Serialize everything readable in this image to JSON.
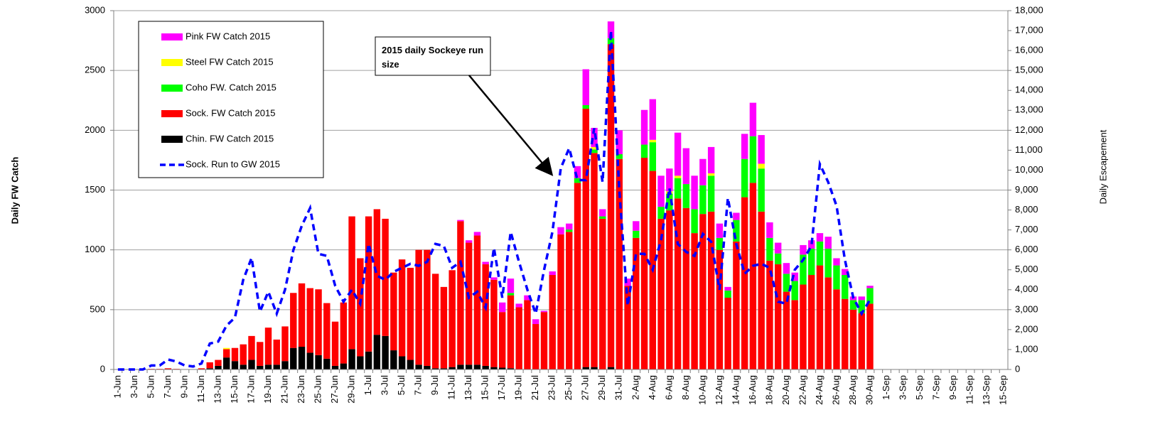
{
  "chart_data": {
    "type": "bar",
    "stacked": true,
    "y_label": "Daily FW Catch",
    "y2_label": "Daily Escapement",
    "annotation": "2015 daily Sockeye run size",
    "categories": [
      "1-Jun",
      null,
      "3-Jun",
      null,
      "5-Jun",
      null,
      "7-Jun",
      null,
      "9-Jun",
      null,
      "11-Jun",
      null,
      "13-Jun",
      null,
      "15-Jun",
      null,
      "17-Jun",
      null,
      "19-Jun",
      null,
      "21-Jun",
      null,
      "23-Jun",
      null,
      "25-Jun",
      null,
      "27-Jun",
      null,
      "29-Jun",
      null,
      "1-Jul",
      null,
      "3-Jul",
      null,
      "5-Jul",
      null,
      "7-Jul",
      null,
      "9-Jul",
      null,
      "11-Jul",
      null,
      "13-Jul",
      null,
      "15-Jul",
      null,
      "17-Jul",
      null,
      "19-Jul",
      null,
      "21-Jul",
      null,
      "23-Jul",
      null,
      "25-Jul",
      null,
      "27-Jul",
      null,
      "29-Jul",
      null,
      "31-Jul",
      null,
      "2-Aug",
      null,
      "4-Aug",
      null,
      "6-Aug",
      null,
      "8-Aug",
      null,
      "10-Aug",
      null,
      "12-Aug",
      null,
      "14-Aug",
      null,
      "16-Aug",
      null,
      "18-Aug",
      null,
      "20-Aug",
      null,
      "22-Aug",
      null,
      "24-Aug",
      null,
      "26-Aug",
      null,
      "28-Aug",
      null,
      "30-Aug",
      null,
      "1-Sep",
      null,
      "3-Sep",
      null,
      "5-Sep",
      null,
      "7-Sep",
      null,
      "9-Sep",
      null,
      "11-Sep",
      null,
      "13-Sep",
      null,
      "15-Sep"
    ],
    "series": [
      {
        "name": "Chin. FW Catch 2015",
        "color": "#000000",
        "values": [
          0,
          0,
          0,
          0,
          0,
          0,
          0,
          0,
          0,
          0,
          0,
          10,
          30,
          100,
          70,
          40,
          80,
          30,
          40,
          40,
          70,
          180,
          190,
          140,
          120,
          90,
          30,
          50,
          170,
          110,
          150,
          290,
          280,
          160,
          110,
          80,
          40,
          30,
          10,
          10,
          20,
          40,
          40,
          40,
          30,
          20,
          15,
          10,
          0,
          0,
          0,
          0,
          0,
          0,
          0,
          0,
          20,
          20,
          0,
          20,
          0,
          0,
          0,
          0,
          0,
          0,
          0,
          0,
          0,
          0,
          0,
          0,
          0,
          0,
          0,
          0,
          0,
          0,
          0,
          0,
          0,
          0,
          0,
          0,
          0,
          0,
          0,
          0,
          0,
          0,
          0,
          null,
          null,
          null,
          null,
          null,
          null,
          null,
          null,
          null,
          null,
          null,
          null,
          null,
          null,
          null,
          null
        ]
      },
      {
        "name": "Sock. FW Catch 2015",
        "color": "#ff0000",
        "values": [
          0,
          0,
          0,
          0,
          5,
          5,
          10,
          5,
          0,
          0,
          10,
          50,
          50,
          70,
          110,
          170,
          200,
          200,
          310,
          210,
          290,
          460,
          530,
          540,
          550,
          465,
          370,
          510,
          1110,
          820,
          1130,
          1050,
          980,
          650,
          810,
          770,
          960,
          970,
          790,
          680,
          810,
          1200,
          1020,
          1080,
          850,
          730,
          465,
          610,
          520,
          580,
          380,
          480,
          790,
          1130,
          1150,
          1560,
          2160,
          1790,
          1260,
          2700,
          1760,
          700,
          1100,
          1770,
          1660,
          1260,
          1330,
          1430,
          1350,
          1140,
          1300,
          1320,
          1000,
          600,
          1070,
          1440,
          1560,
          1320,
          910,
          880,
          650,
          580,
          710,
          790,
          870,
          770,
          670,
          590,
          500,
          470,
          550,
          null,
          null,
          null,
          null,
          null,
          null,
          null,
          null,
          null,
          null,
          null,
          null,
          null,
          null,
          null,
          null
        ]
      },
      {
        "name": "Coho FW. Catch 2015",
        "color": "#00ff00",
        "values": [
          0,
          0,
          0,
          0,
          0,
          0,
          0,
          0,
          0,
          0,
          0,
          0,
          0,
          0,
          0,
          0,
          0,
          0,
          0,
          0,
          0,
          0,
          0,
          0,
          0,
          0,
          0,
          0,
          0,
          0,
          0,
          0,
          0,
          0,
          0,
          0,
          0,
          0,
          0,
          0,
          0,
          0,
          0,
          0,
          0,
          0,
          0,
          20,
          0,
          0,
          0,
          0,
          0,
          0,
          20,
          40,
          30,
          30,
          20,
          50,
          40,
          0,
          60,
          110,
          240,
          100,
          140,
          170,
          200,
          200,
          240,
          300,
          100,
          60,
          180,
          320,
          390,
          360,
          190,
          90,
          150,
          160,
          250,
          220,
          200,
          240,
          200,
          200,
          80,
          110,
          130,
          null,
          null,
          null,
          null,
          null,
          null,
          null,
          null,
          null,
          null,
          null,
          null,
          null,
          null,
          null,
          null
        ]
      },
      {
        "name": "Steel FW Catch 2015",
        "color": "#ffff00",
        "values": [
          0,
          0,
          0,
          0,
          0,
          0,
          0,
          0,
          0,
          0,
          0,
          0,
          0,
          10,
          0,
          0,
          0,
          0,
          0,
          0,
          0,
          0,
          0,
          0,
          0,
          0,
          0,
          0,
          0,
          0,
          0,
          0,
          0,
          0,
          0,
          0,
          0,
          0,
          0,
          0,
          0,
          0,
          0,
          0,
          0,
          0,
          0,
          0,
          0,
          0,
          0,
          0,
          0,
          0,
          0,
          0,
          0,
          20,
          0,
          0,
          0,
          0,
          0,
          0,
          20,
          0,
          20,
          20,
          0,
          0,
          0,
          20,
          0,
          0,
          0,
          0,
          0,
          40,
          0,
          0,
          0,
          0,
          0,
          0,
          0,
          0,
          0,
          0,
          0,
          0,
          0,
          null,
          null,
          null,
          null,
          null,
          null,
          null,
          null,
          null,
          null,
          null,
          null,
          null,
          null,
          null,
          null
        ]
      },
      {
        "name": "Pink FW Catch 2015",
        "color": "#ff00ff",
        "values": [
          0,
          0,
          0,
          0,
          0,
          0,
          0,
          0,
          0,
          0,
          0,
          0,
          0,
          0,
          0,
          0,
          0,
          0,
          0,
          0,
          0,
          0,
          0,
          0,
          0,
          0,
          0,
          0,
          0,
          0,
          0,
          0,
          0,
          0,
          0,
          0,
          0,
          0,
          0,
          0,
          0,
          10,
          20,
          30,
          20,
          20,
          80,
          120,
          30,
          40,
          40,
          10,
          30,
          60,
          50,
          100,
          300,
          160,
          60,
          140,
          200,
          60,
          80,
          290,
          340,
          260,
          190,
          360,
          300,
          280,
          220,
          220,
          120,
          30,
          60,
          210,
          280,
          240,
          130,
          90,
          90,
          70,
          80,
          70,
          70,
          100,
          60,
          50,
          30,
          30,
          20,
          null,
          null,
          null,
          null,
          null,
          null,
          null,
          null,
          null,
          null,
          null,
          null,
          null,
          null,
          null,
          null
        ]
      },
      {
        "name": "Sock. Run to GW 2015",
        "color": "#0000ff",
        "type": "line",
        "axis": "y2",
        "values": [
          0,
          0,
          0,
          0,
          200,
          200,
          500,
          400,
          200,
          150,
          300,
          1300,
          1400,
          2200,
          2600,
          4500,
          5600,
          2900,
          3900,
          2800,
          4000,
          6000,
          7200,
          8100,
          5800,
          5700,
          4200,
          3400,
          4000,
          3300,
          6300,
          4700,
          4500,
          4900,
          5100,
          5300,
          5200,
          5400,
          6300,
          6200,
          5100,
          5400,
          3600,
          3900,
          3100,
          6100,
          3600,
          6900,
          5400,
          4000,
          2800,
          5000,
          6900,
          10100,
          11100,
          9500,
          9500,
          12100,
          9400,
          17000,
          9000,
          3200,
          5800,
          5800,
          5000,
          6500,
          9100,
          6300,
          5900,
          5700,
          6800,
          6400,
          4000,
          8600,
          6300,
          4800,
          5200,
          5300,
          5100,
          3400,
          3300,
          5000,
          5500,
          6200,
          10300,
          9400,
          8200,
          5500,
          3600,
          2800,
          3500,
          null,
          null,
          null,
          null,
          null,
          null,
          null,
          null,
          null,
          null,
          null,
          null,
          null,
          null,
          null,
          null
        ]
      }
    ],
    "ylim": [
      0,
      3000
    ],
    "yticks": [
      0,
      500,
      1000,
      1500,
      2000,
      2500,
      3000
    ],
    "y2lim": [
      0,
      18000
    ],
    "y2ticks": [
      0,
      {
        "value": 1000,
        "label": "1,000"
      },
      {
        "value": 2000,
        "label": "2,000"
      },
      {
        "value": 3000,
        "label": "3,000"
      },
      {
        "value": 4000,
        "label": "4,000"
      },
      {
        "value": 5000,
        "label": "5,000"
      },
      {
        "value": 6000,
        "label": "6,000"
      },
      {
        "value": 7000,
        "label": "7,000"
      },
      {
        "value": 8000,
        "label": "8,000"
      },
      {
        "value": 9000,
        "label": "9,000"
      },
      {
        "value": 10000,
        "label": "10,000"
      },
      {
        "value": 11000,
        "label": "11,000"
      },
      {
        "value": 12000,
        "label": "12,000"
      },
      {
        "value": 13000,
        "label": "13,000"
      },
      {
        "value": 14000,
        "label": "14,000"
      },
      {
        "value": 15000,
        "label": "15,000"
      },
      {
        "value": 16000,
        "label": "16,000"
      },
      {
        "value": 17000,
        "label": "17,000"
      },
      {
        "value": 18000,
        "label": "18,000"
      }
    ],
    "grid": true,
    "legend": "upper left"
  }
}
